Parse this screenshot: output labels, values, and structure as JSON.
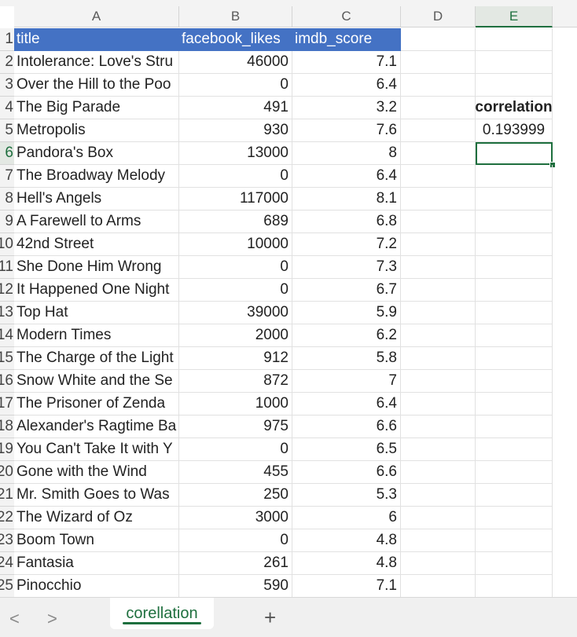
{
  "columns": [
    "A",
    "B",
    "C",
    "D",
    "E"
  ],
  "header_row": {
    "num": "1",
    "title": "title",
    "facebook_likes": "facebook_likes",
    "imdb_score": "imdb_score"
  },
  "rows": [
    {
      "num": "2",
      "title": "Intolerance: Love's Stru",
      "likes": "46000",
      "score": "7.1"
    },
    {
      "num": "3",
      "title": "Over the Hill to the Poo",
      "likes": "0",
      "score": "6.4"
    },
    {
      "num": "4",
      "title": "The Big Parade",
      "likes": "491",
      "score": "3.2"
    },
    {
      "num": "5",
      "title": "Metropolis",
      "likes": "930",
      "score": "7.6"
    },
    {
      "num": "6",
      "title": "Pandora's Box",
      "likes": "13000",
      "score": "8"
    },
    {
      "num": "7",
      "title": "The Broadway Melody",
      "likes": "0",
      "score": "6.4"
    },
    {
      "num": "8",
      "title": "Hell's Angels",
      "likes": "117000",
      "score": "8.1"
    },
    {
      "num": "9",
      "title": "A Farewell to Arms",
      "likes": "689",
      "score": "6.8"
    },
    {
      "num": "10",
      "title": "42nd Street",
      "likes": "10000",
      "score": "7.2"
    },
    {
      "num": "11",
      "title": "She Done Him Wrong",
      "likes": "0",
      "score": "7.3"
    },
    {
      "num": "12",
      "title": "It Happened One Night",
      "likes": "0",
      "score": "6.7"
    },
    {
      "num": "13",
      "title": "Top Hat",
      "likes": "39000",
      "score": "5.9"
    },
    {
      "num": "14",
      "title": "Modern Times",
      "likes": "2000",
      "score": "6.2"
    },
    {
      "num": "15",
      "title": "The Charge of the Light",
      "likes": "912",
      "score": "5.8"
    },
    {
      "num": "16",
      "title": "Snow White and the Se",
      "likes": "872",
      "score": "7"
    },
    {
      "num": "17",
      "title": "The Prisoner of Zenda",
      "likes": "1000",
      "score": "6.4"
    },
    {
      "num": "18",
      "title": "Alexander's Ragtime Ba",
      "likes": "975",
      "score": "6.6"
    },
    {
      "num": "19",
      "title": "You Can't Take It with Y",
      "likes": "0",
      "score": "6.5"
    },
    {
      "num": "20",
      "title": "Gone with the Wind",
      "likes": "455",
      "score": "6.6"
    },
    {
      "num": "21",
      "title": "Mr. Smith Goes to Was",
      "likes": "250",
      "score": "5.3"
    },
    {
      "num": "22",
      "title": "The Wizard of Oz",
      "likes": "3000",
      "score": "6"
    },
    {
      "num": "23",
      "title": "Boom Town",
      "likes": "0",
      "score": "4.8"
    },
    {
      "num": "24",
      "title": "Fantasia",
      "likes": "261",
      "score": "4.8"
    },
    {
      "num": "25",
      "title": "Pinocchio",
      "likes": "590",
      "score": "7.1"
    }
  ],
  "correlation": {
    "label": "correlation",
    "value": "0.193999"
  },
  "selected_cell": "E6",
  "sheet_tabs": [
    {
      "label": "corellation",
      "active": true
    }
  ],
  "nav": {
    "prev_icon": "chevron-left-icon",
    "next_icon": "chevron-right-icon",
    "add_icon": "plus-icon",
    "prev": "<",
    "next": ">",
    "add": "+"
  },
  "colors": {
    "header_fill": "#4472c4",
    "accent": "#1e6f3e"
  }
}
